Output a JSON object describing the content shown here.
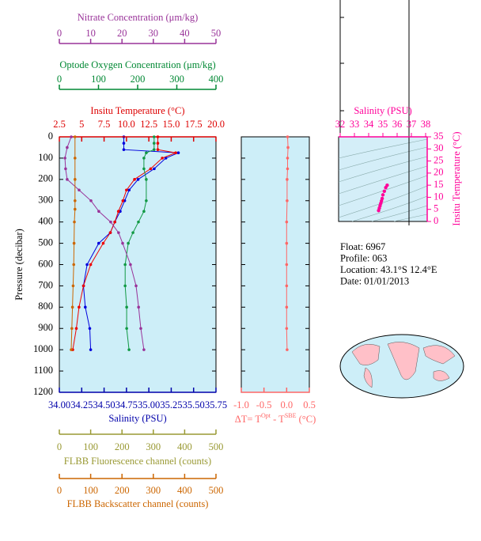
{
  "chart_data": [
    {
      "type": "profile",
      "ylabel": "Pressure (decibar)",
      "ylim": [
        0,
        1200
      ],
      "y_inverted": true,
      "yticks": [
        0,
        100,
        200,
        300,
        400,
        500,
        600,
        700,
        800,
        900,
        1000,
        1100,
        1200
      ],
      "axes": [
        {
          "label": "Salinity (PSU)",
          "color": "#0000aa",
          "xlim": [
            34,
            35.75
          ],
          "xticks": [
            {
              "value": 34,
              "label": "34.00"
            },
            34.25,
            {
              "value": 34.5,
              "label": "34.50"
            },
            34.75,
            {
              "value": 35,
              "label": "35.00"
            },
            35.25,
            {
              "value": 35.5,
              "label": "35.50"
            },
            35.75
          ],
          "series": [
            {
              "color": "#0000dd",
              "pressure": [
                0,
                30,
                60,
                75,
                100,
                150,
                200,
                250,
                300,
                350,
                400,
                450,
                500,
                600,
                700,
                800,
                900,
                1000
              ],
              "values": [
                34.72,
                34.72,
                34.72,
                35.33,
                35.19,
                35.06,
                34.88,
                34.78,
                34.73,
                34.68,
                34.62,
                34.57,
                34.44,
                34.31,
                34.27,
                34.29,
                34.34,
                34.35
              ]
            }
          ]
        },
        {
          "label": "Insitu Temperature (°C)",
          "color": "#dd0000",
          "xlim": [
            2.5,
            20
          ],
          "xticks": [
            2.5,
            5,
            7.5,
            {
              "value": 10,
              "label": "10.0"
            },
            12.5,
            {
              "value": 15,
              "label": "15.0"
            },
            17.5,
            {
              "value": 20,
              "label": "20.0"
            }
          ],
          "series": [
            {
              "color": "#ee0000",
              "pressure": [
                0,
                30,
                60,
                75,
                100,
                150,
                200,
                250,
                300,
                350,
                400,
                450,
                500,
                600,
                700,
                800,
                900,
                1000
              ],
              "values": [
                13.5,
                13.5,
                13.5,
                15.5,
                14.0,
                12.7,
                10.9,
                10.0,
                9.6,
                9.1,
                8.7,
                8.2,
                7.4,
                6.0,
                5.2,
                4.7,
                4.4,
                4.0
              ]
            }
          ]
        },
        {
          "label": "Optode Oxygen Concentration (μm/kg)",
          "color": "#008833",
          "xlim": [
            0,
            400
          ],
          "xticks": [
            0,
            100,
            200,
            300,
            400
          ],
          "series": [
            {
              "color": "#119944",
              "pressure": [
                0,
                30,
                60,
                75,
                100,
                150,
                200,
                300,
                350,
                400,
                450,
                500,
                600,
                700,
                800,
                900,
                1000
              ],
              "values": [
                242,
                242,
                242,
                222,
                216,
                216,
                222,
                222,
                216,
                202,
                188,
                176,
                168,
                168,
                172,
                172,
                178
              ]
            }
          ]
        },
        {
          "label": "Nitrate Concentration (μm/kg)",
          "color": "#993399",
          "xlim": [
            0,
            50
          ],
          "xticks": [
            0,
            10,
            20,
            30,
            40,
            50
          ],
          "series": [
            {
              "color": "#993399",
              "pressure": [
                0,
                50,
                100,
                150,
                200,
                250,
                300,
                350,
                400,
                450,
                500,
                600,
                700,
                800,
                900,
                1000
              ],
              "values": [
                3.8,
                2.5,
                1.8,
                2.0,
                2.5,
                6.3,
                10.1,
                12.6,
                16.4,
                18.9,
                20.2,
                22.7,
                24.5,
                25.3,
                26.0,
                27.0
              ]
            }
          ]
        },
        {
          "label": "FLBB Fluorescence channel (counts)",
          "color": "#999933",
          "xlim": [
            0,
            500
          ],
          "xticks": [
            0,
            100,
            200,
            300,
            400,
            500
          ],
          "series": []
        },
        {
          "label": "FLBB Backscatter channel (counts)",
          "color": "#cc6600",
          "xlim": [
            0,
            500
          ],
          "xticks": [
            0,
            100,
            200,
            300,
            400,
            500
          ],
          "series": [
            {
              "color": "#cc6600",
              "pressure": [
                0,
                100,
                200,
                300,
                340,
                400,
                500,
                600,
                700,
                800,
                900,
                1000
              ],
              "values": [
                50,
                50,
                50,
                50,
                50,
                48,
                47,
                46,
                44,
                42,
                40,
                38
              ]
            }
          ]
        }
      ]
    },
    {
      "type": "profile",
      "axes": [
        {
          "label_parts": [
            "ΔT= T",
            "Opt",
            " - T",
            "SBE",
            " (°C)"
          ],
          "color": "#ff6666",
          "xlim": [
            -1,
            0.5
          ],
          "xticks": [
            {
              "value": -1,
              "label": "-1.0"
            },
            -0.5,
            {
              "value": 0,
              "label": "0.0"
            },
            0.5
          ],
          "series": [
            {
              "color": "#ff6666",
              "pressure": [
                0,
                50,
                100,
                150,
                200,
                300,
                400,
                500,
                600,
                700,
                800,
                900,
                1000
              ],
              "values": [
                0.02,
                0.03,
                0.02,
                0.02,
                0.01,
                0.01,
                0.0,
                0.0,
                0.0,
                0.0,
                0.0,
                0.0,
                0.01
              ]
            }
          ]
        }
      ]
    },
    {
      "type": "scatter",
      "xlabel": "Salinity (PSU)",
      "ylabel": "Insitu Temperature (°C)",
      "color": "#ff0099",
      "xlim": [
        32,
        38
      ],
      "xticks": [
        32,
        33,
        34,
        35,
        36,
        37,
        38
      ],
      "ylim": [
        0,
        35
      ],
      "yticks": [
        0,
        5,
        10,
        15,
        20,
        25,
        30,
        35
      ],
      "x": [
        34.7,
        34.75,
        34.8,
        34.85,
        34.9,
        34.95,
        35.0,
        35.1,
        35.2,
        35.3
      ],
      "y": [
        4.5,
        5.5,
        6.5,
        7.5,
        8.5,
        9.5,
        11,
        12.5,
        14,
        15
      ]
    }
  ],
  "info": {
    "lines": [
      "Float:  6967",
      "Profile:  063",
      "Location:  43.1°S  12.4°E",
      "Date:  01/01/2013"
    ]
  }
}
